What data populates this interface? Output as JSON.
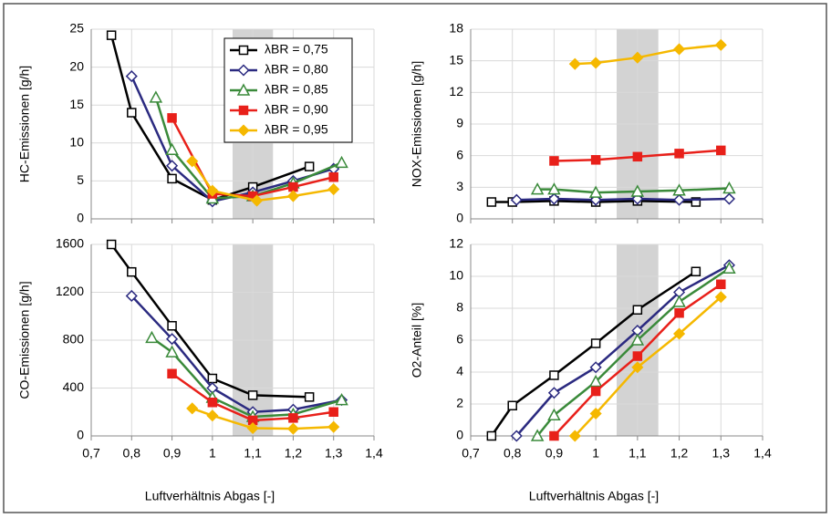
{
  "chart_data": [
    {
      "type": "line",
      "ylabel": "HC-Emissionen [g/h]",
      "legend": "upper right",
      "highlight": [
        1.05,
        1.15
      ],
      "grid": true,
      "xtick_labels": false,
      "xlim": [
        0.7,
        1.4
      ],
      "xticks": [
        {
          "value": 0.7,
          "label": "0,7"
        },
        {
          "value": 0.8,
          "label": "0,8"
        },
        {
          "value": 0.9,
          "label": "0,9"
        },
        1,
        {
          "value": 1.1,
          "label": "1,1"
        },
        {
          "value": 1.2,
          "label": "1,2"
        },
        {
          "value": 1.3,
          "label": "1,3"
        },
        {
          "value": 1.4,
          "label": "1,4"
        }
      ],
      "ylim": [
        0,
        25
      ],
      "yticks": [
        0,
        5,
        10,
        15,
        20,
        25
      ],
      "series": [
        {
          "name": "λBR = 0,75",
          "color": "#000000",
          "marker": "square",
          "filled": false,
          "x": [
            0.75,
            0.8,
            0.9,
            1.0,
            1.1,
            1.24
          ],
          "values": [
            24.2,
            14,
            5.3,
            2.5,
            4.2,
            6.9
          ]
        },
        {
          "name": "λBR = 0,80",
          "color": "#2b2a80",
          "marker": "diamond",
          "filled": false,
          "x": [
            0.8,
            0.9,
            1.0,
            1.1,
            1.2,
            1.3
          ],
          "values": [
            18.8,
            7,
            2.3,
            3.5,
            5,
            6.6
          ]
        },
        {
          "name": "λBR = 0,85",
          "color": "#3a8a3a",
          "marker": "triangle",
          "filled": false,
          "x": [
            0.86,
            0.9,
            1.0,
            1.1,
            1.2,
            1.32
          ],
          "values": [
            16,
            9.1,
            2.7,
            3,
            4.7,
            7.4
          ]
        },
        {
          "name": "λBR = 0,90",
          "color": "#e8201a",
          "marker": "square",
          "filled": true,
          "x": [
            0.9,
            1.0,
            1.1,
            1.2,
            1.3
          ],
          "values": [
            13.3,
            3.3,
            3,
            4.2,
            5.5
          ]
        },
        {
          "name": "λBR = 0,95",
          "color": "#f5b800",
          "marker": "diamond",
          "filled": true,
          "x": [
            0.95,
            1.0,
            1.11,
            1.2,
            1.3
          ],
          "values": [
            7.6,
            3.7,
            2.4,
            3,
            3.9
          ]
        }
      ]
    },
    {
      "type": "line",
      "ylabel": "NOX-Emissionen [g/h]",
      "highlight": [
        1.05,
        1.15
      ],
      "grid": true,
      "xtick_labels": false,
      "xlim": [
        0.7,
        1.4
      ],
      "xticks": [
        {
          "value": 0.7,
          "label": "0,7"
        },
        {
          "value": 0.8,
          "label": "0,8"
        },
        {
          "value": 0.9,
          "label": "0,9"
        },
        1,
        {
          "value": 1.1,
          "label": "1,1"
        },
        {
          "value": 1.2,
          "label": "1,2"
        },
        {
          "value": 1.3,
          "label": "1,3"
        },
        {
          "value": 1.4,
          "label": "1,4"
        }
      ],
      "ylim": [
        0,
        18
      ],
      "yticks": [
        0,
        3,
        6,
        9,
        12,
        15,
        18
      ],
      "series": [
        {
          "color": "#000000",
          "marker": "square",
          "filled": false,
          "x": [
            0.75,
            0.8,
            0.9,
            1.0,
            1.1,
            1.24
          ],
          "values": [
            1.6,
            1.6,
            1.7,
            1.6,
            1.7,
            1.6
          ]
        },
        {
          "color": "#2b2a80",
          "marker": "diamond",
          "filled": false,
          "x": [
            0.81,
            0.9,
            1.0,
            1.1,
            1.2,
            1.32
          ],
          "values": [
            1.8,
            1.9,
            1.8,
            1.9,
            1.8,
            1.9
          ]
        },
        {
          "color": "#3a8a3a",
          "marker": "triangle",
          "filled": false,
          "x": [
            0.86,
            0.9,
            1.0,
            1.1,
            1.2,
            1.32
          ],
          "values": [
            2.8,
            2.8,
            2.5,
            2.6,
            2.7,
            2.9
          ]
        },
        {
          "color": "#e8201a",
          "marker": "square",
          "filled": true,
          "x": [
            0.9,
            1.0,
            1.1,
            1.2,
            1.3
          ],
          "values": [
            5.5,
            5.6,
            5.9,
            6.2,
            6.5
          ]
        },
        {
          "color": "#f5b800",
          "marker": "diamond",
          "filled": true,
          "x": [
            0.95,
            1.0,
            1.1,
            1.2,
            1.3
          ],
          "values": [
            14.7,
            14.8,
            15.3,
            16.1,
            16.5
          ]
        }
      ]
    },
    {
      "type": "line",
      "ylabel": "CO-Emissionen [g/h]",
      "xlabel": "Luftverhältnis Abgas [-]",
      "highlight": [
        1.05,
        1.15
      ],
      "grid": true,
      "xtick_labels": true,
      "xlim": [
        0.7,
        1.4
      ],
      "xticks": [
        {
          "value": 0.7,
          "label": "0,7"
        },
        {
          "value": 0.8,
          "label": "0,8"
        },
        {
          "value": 0.9,
          "label": "0,9"
        },
        1,
        {
          "value": 1.1,
          "label": "1,1"
        },
        {
          "value": 1.2,
          "label": "1,2"
        },
        {
          "value": 1.3,
          "label": "1,3"
        },
        {
          "value": 1.4,
          "label": "1,4"
        }
      ],
      "ylim": [
        0,
        1600
      ],
      "yticks": [
        0,
        400,
        800,
        1200,
        1600
      ],
      "series": [
        {
          "color": "#000000",
          "marker": "square",
          "filled": false,
          "x": [
            0.75,
            0.8,
            0.9,
            1.0,
            1.1,
            1.24
          ],
          "values": [
            1600,
            1370,
            920,
            480,
            340,
            325
          ]
        },
        {
          "color": "#2b2a80",
          "marker": "diamond",
          "filled": false,
          "x": [
            0.8,
            0.9,
            1.0,
            1.1,
            1.2,
            1.32
          ],
          "values": [
            1170,
            810,
            400,
            200,
            220,
            300
          ]
        },
        {
          "color": "#3a8a3a",
          "marker": "triangle",
          "filled": false,
          "x": [
            0.85,
            0.9,
            1.0,
            1.1,
            1.2,
            1.32
          ],
          "values": [
            820,
            700,
            320,
            160,
            180,
            300
          ]
        },
        {
          "color": "#e8201a",
          "marker": "square",
          "filled": true,
          "x": [
            0.9,
            1.0,
            1.1,
            1.2,
            1.3
          ],
          "values": [
            520,
            280,
            130,
            150,
            200
          ]
        },
        {
          "color": "#f5b800",
          "marker": "diamond",
          "filled": true,
          "x": [
            0.95,
            1.0,
            1.1,
            1.2,
            1.3
          ],
          "values": [
            230,
            170,
            65,
            60,
            75
          ]
        }
      ]
    },
    {
      "type": "line",
      "ylabel": "O2-Anteil [%]",
      "xlabel": "Luftverhältnis Abgas [-]",
      "highlight": [
        1.05,
        1.15
      ],
      "grid": true,
      "xtick_labels": true,
      "xlim": [
        0.7,
        1.4
      ],
      "xticks": [
        {
          "value": 0.7,
          "label": "0,7"
        },
        {
          "value": 0.8,
          "label": "0,8"
        },
        {
          "value": 0.9,
          "label": "0,9"
        },
        1,
        {
          "value": 1.1,
          "label": "1,1"
        },
        {
          "value": 1.2,
          "label": "1,2"
        },
        {
          "value": 1.3,
          "label": "1,3"
        },
        {
          "value": 1.4,
          "label": "1,4"
        }
      ],
      "ylim": [
        0,
        12
      ],
      "yticks": [
        0,
        2,
        4,
        6,
        8,
        10,
        12
      ],
      "series": [
        {
          "color": "#000000",
          "marker": "square",
          "filled": false,
          "x": [
            0.75,
            0.8,
            0.9,
            1.0,
            1.1,
            1.24
          ],
          "values": [
            0,
            1.9,
            3.8,
            5.8,
            7.9,
            10.3
          ]
        },
        {
          "color": "#2b2a80",
          "marker": "diamond",
          "filled": false,
          "x": [
            0.81,
            0.9,
            1.0,
            1.1,
            1.2,
            1.32
          ],
          "values": [
            0,
            2.7,
            4.3,
            6.6,
            9,
            10.7
          ]
        },
        {
          "color": "#3a8a3a",
          "marker": "triangle",
          "filled": false,
          "x": [
            0.86,
            0.9,
            1.0,
            1.1,
            1.2,
            1.32
          ],
          "values": [
            0,
            1.3,
            3.4,
            6,
            8.4,
            10.5
          ]
        },
        {
          "color": "#e8201a",
          "marker": "square",
          "filled": true,
          "x": [
            0.9,
            1.0,
            1.1,
            1.2,
            1.3
          ],
          "values": [
            0,
            2.8,
            5,
            7.7,
            9.5
          ]
        },
        {
          "color": "#f5b800",
          "marker": "diamond",
          "filled": true,
          "x": [
            0.95,
            1.0,
            1.1,
            1.2,
            1.3
          ],
          "values": [
            0,
            1.4,
            4.3,
            6.4,
            8.7
          ]
        }
      ]
    }
  ]
}
